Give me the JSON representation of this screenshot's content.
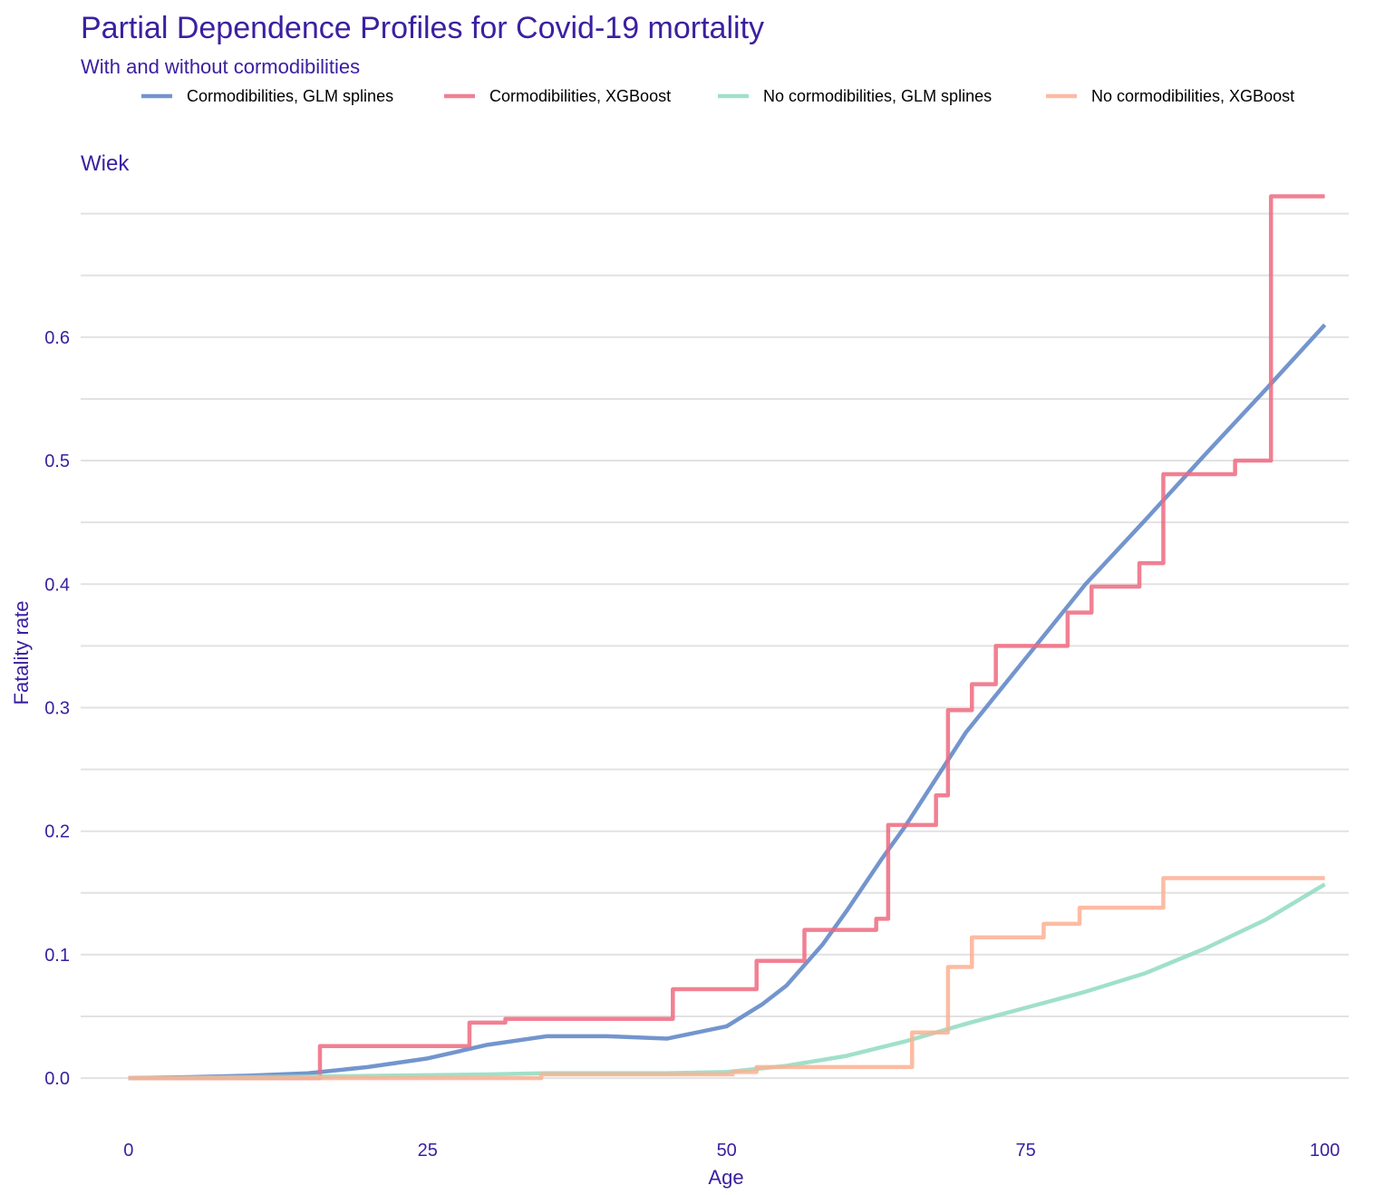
{
  "chart_data": {
    "type": "line",
    "title": "Partial Dependence Profiles for Covid-19 mortality",
    "subtitle": "With and without cormodibilities",
    "panel_label": "Wiek",
    "xlabel": "Age",
    "ylabel": "Fatality rate",
    "xlim": [
      -4,
      102
    ],
    "ylim": [
      -0.03,
      0.71
    ],
    "x_ticks": [
      0,
      25,
      50,
      75,
      100
    ],
    "x_tick_labels": [
      "0",
      "25",
      "50",
      "75",
      "100"
    ],
    "y_ticks": [
      0.0,
      0.1,
      0.2,
      0.3,
      0.4,
      0.5,
      0.6
    ],
    "y_tick_labels": [
      "0.0",
      "0.1",
      "0.2",
      "0.3",
      "0.4",
      "0.5",
      "0.6"
    ],
    "y_minor_gridlines": [
      0.05,
      0.15,
      0.25,
      0.35,
      0.45,
      0.55,
      0.65,
      0.7
    ],
    "grid": true,
    "legend_position": "top",
    "series": [
      {
        "name": "Cormodibilities, GLM splines",
        "color": "#5b82c6",
        "step": false,
        "x": [
          0,
          5,
          10,
          15,
          20,
          25,
          30,
          35,
          40,
          45,
          50,
          53,
          55,
          58,
          60,
          63,
          65,
          68,
          70,
          75,
          80,
          85,
          90,
          95,
          100
        ],
        "y": [
          0.0,
          0.0008,
          0.002,
          0.004,
          0.009,
          0.016,
          0.027,
          0.034,
          0.034,
          0.032,
          0.042,
          0.06,
          0.075,
          0.108,
          0.135,
          0.178,
          0.205,
          0.25,
          0.28,
          0.34,
          0.4,
          0.452,
          0.505,
          0.557,
          0.61
        ]
      },
      {
        "name": "Cormodibilities, XGBoost",
        "color": "#ee6a7f",
        "step": true,
        "x": [
          0,
          16,
          28.5,
          31.5,
          45.5,
          52.5,
          56.5,
          62.5,
          63.5,
          67.5,
          68.5,
          70.5,
          72.5,
          78.5,
          80.5,
          84.5,
          86.5,
          92.5,
          95.5,
          100
        ],
        "y": [
          0.0,
          0.026,
          0.045,
          0.048,
          0.072,
          0.095,
          0.12,
          0.129,
          0.205,
          0.229,
          0.298,
          0.319,
          0.35,
          0.377,
          0.398,
          0.417,
          0.489,
          0.5,
          0.714,
          0.714
        ]
      },
      {
        "name": "No cormodibilities, GLM splines",
        "color": "#8fdbbf",
        "step": false,
        "x": [
          0,
          10,
          20,
          30,
          35,
          40,
          45,
          50,
          55,
          60,
          65,
          70,
          75,
          80,
          85,
          90,
          95,
          100
        ],
        "y": [
          0.0,
          0.0008,
          0.0018,
          0.003,
          0.004,
          0.004,
          0.004,
          0.005,
          0.01,
          0.018,
          0.03,
          0.044,
          0.057,
          0.07,
          0.085,
          0.105,
          0.128,
          0.157
        ]
      },
      {
        "name": "No cormodibilities, XGBoost",
        "color": "#fbb093",
        "step": true,
        "x": [
          0,
          34.5,
          50.5,
          52.5,
          65.5,
          68.5,
          70.5,
          76.5,
          79.5,
          86.5,
          100
        ],
        "y": [
          0.0,
          0.003,
          0.005,
          0.009,
          0.037,
          0.09,
          0.114,
          0.125,
          0.138,
          0.162,
          0.162
        ]
      }
    ]
  }
}
